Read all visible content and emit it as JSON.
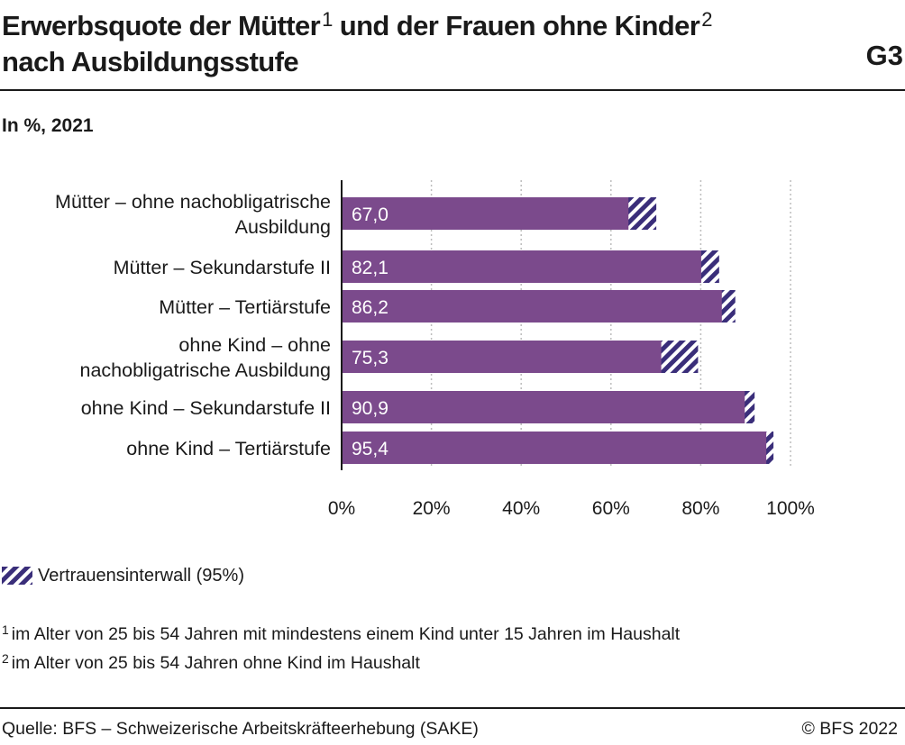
{
  "header": {
    "title_line1": "Erwerbsquote der Mütter",
    "title_sup1": "1",
    "title_mid": " und der Frauen ohne Kinder",
    "title_sup2": "2",
    "title_line2": "nach Ausbildungsstufe",
    "chart_id": "G3",
    "subtitle": "In %, 2021"
  },
  "chart_data": {
    "type": "bar",
    "orientation": "horizontal",
    "categories": [
      [
        "Mütter – ohne nachobligatrische",
        "Ausbildung"
      ],
      [
        "Mütter – Sekundarstufe II"
      ],
      [
        "Mütter – Tertiärstufe"
      ],
      [
        "ohne Kind – ohne",
        "nachobligatrische Ausbildung"
      ],
      [
        "ohne Kind – Sekundarstufe II"
      ],
      [
        "ohne Kind – Tertiärstufe"
      ]
    ],
    "values": [
      67.0,
      82.1,
      86.2,
      75.3,
      90.9,
      95.4
    ],
    "value_labels": [
      "67,0",
      "82,1",
      "86,2",
      "75,3",
      "90,9",
      "95,4"
    ],
    "ci": [
      [
        63.9,
        70.1
      ],
      [
        80.1,
        84.1
      ],
      [
        84.7,
        87.7
      ],
      [
        71.2,
        79.4
      ],
      [
        89.8,
        92.0
      ],
      [
        94.6,
        96.2
      ]
    ],
    "xlim": [
      0,
      100
    ],
    "xticks": [
      0,
      20,
      40,
      60,
      80,
      100
    ],
    "xtick_labels": [
      "0%",
      "20%",
      "40%",
      "60%",
      "80%",
      "100%"
    ],
    "grid": "vertical-dotted",
    "colors": {
      "bar": "#7b4a8c",
      "ci": "#3a2e7a",
      "label": "#ffffff",
      "grid": "#bdbdbd"
    },
    "legend": {
      "label": "Vertrauensinterwall (95%)",
      "position": "bottom-left"
    }
  },
  "footnotes": [
    {
      "marker": "1",
      "text": "im Alter von 25 bis 54 Jahren mit mindestens einem Kind unter 15 Jahren im Haushalt"
    },
    {
      "marker": "2",
      "text": "im Alter von 25 bis 54 Jahren ohne Kind im Haushalt"
    }
  ],
  "footer": {
    "source": "Quelle: BFS – Schweizerische Arbeitskräfteerhebung (SAKE)",
    "copyright": "© BFS 2022"
  }
}
